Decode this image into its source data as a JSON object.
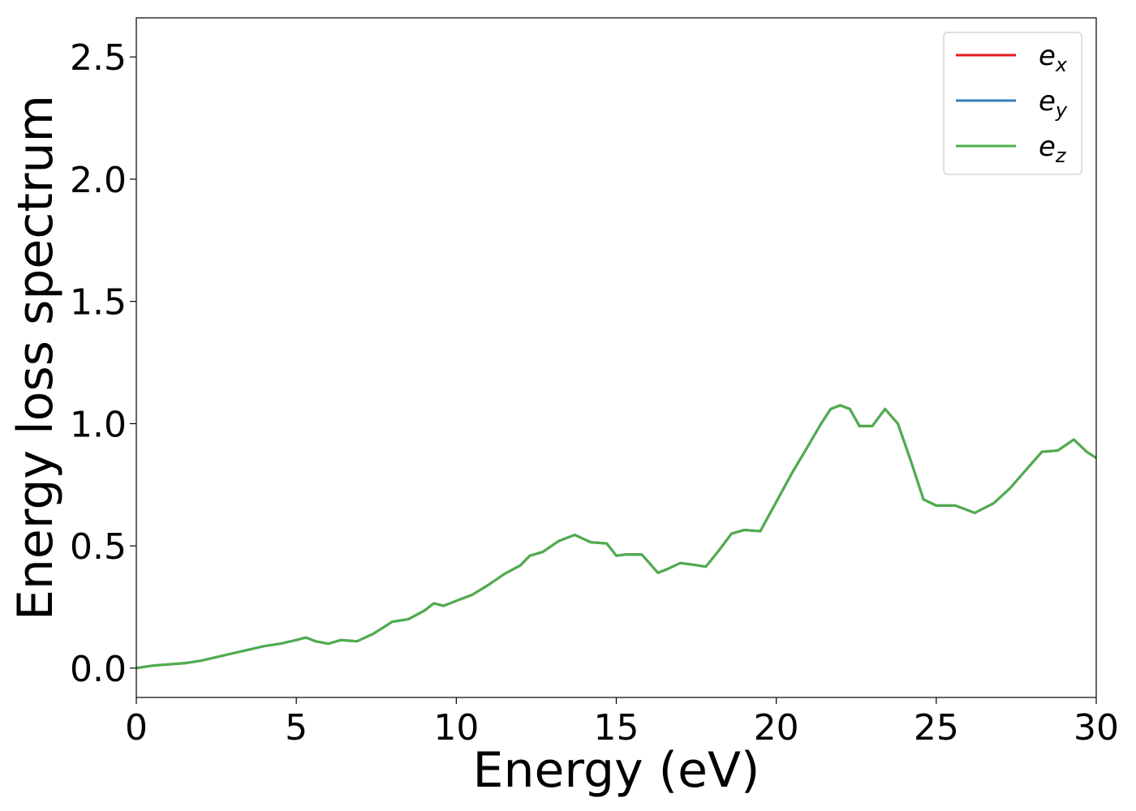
{
  "chart_data": {
    "type": "line",
    "xlabel": "Energy (eV)",
    "ylabel": "Energy loss spectrum",
    "xlim": [
      0,
      30
    ],
    "ylim": [
      -0.12,
      2.66
    ],
    "xticks": [
      0,
      5,
      10,
      15,
      20,
      25,
      30
    ],
    "xtick_labels": [
      "0",
      "5",
      "10",
      "15",
      "20",
      "25",
      "30"
    ],
    "yticks": [
      0.0,
      0.5,
      1.0,
      1.5,
      2.0,
      2.5
    ],
    "ytick_labels": [
      "0.0",
      "0.5",
      "1.0",
      "1.5",
      "2.0",
      "2.5"
    ],
    "grid": false,
    "legend_position": "top-right",
    "x": [
      0,
      0.5,
      1.0,
      1.5,
      2.0,
      2.5,
      3.0,
      3.5,
      4.0,
      4.5,
      5.0,
      5.3,
      5.6,
      6.0,
      6.4,
      6.9,
      7.4,
      8.0,
      8.5,
      9.0,
      9.3,
      9.6,
      10.0,
      10.5,
      11.0,
      11.5,
      12.0,
      12.3,
      12.7,
      13.2,
      13.7,
      14.2,
      14.7,
      15.0,
      15.3,
      15.8,
      16.3,
      16.6,
      17.0,
      17.3,
      17.8,
      18.2,
      18.6,
      19.0,
      19.5,
      20.0,
      20.5,
      21.0,
      21.4,
      21.7,
      22.0,
      22.3,
      22.6,
      23.0,
      23.4,
      23.8,
      24.2,
      24.6,
      25.0,
      25.6,
      26.2,
      26.8,
      27.3,
      27.8,
      28.3,
      28.8,
      29.3,
      29.7,
      30.0
    ],
    "series": [
      {
        "name": "e_x",
        "label_base": "e",
        "label_sub": "x",
        "color": "#e41a1c",
        "values": [
          0.0,
          0.01,
          0.015,
          0.02,
          0.03,
          0.045,
          0.06,
          0.075,
          0.09,
          0.1,
          0.115,
          0.125,
          0.11,
          0.1,
          0.115,
          0.11,
          0.14,
          0.19,
          0.2,
          0.235,
          0.265,
          0.255,
          0.275,
          0.3,
          0.34,
          0.385,
          0.42,
          0.46,
          0.475,
          0.52,
          0.545,
          0.515,
          0.51,
          0.46,
          0.465,
          0.465,
          0.39,
          0.405,
          0.43,
          0.425,
          0.415,
          0.48,
          0.55,
          0.565,
          0.56,
          0.68,
          0.8,
          0.91,
          1.0,
          1.06,
          1.075,
          1.06,
          0.99,
          0.99,
          1.06,
          1.0,
          0.85,
          0.69,
          0.665,
          0.665,
          0.635,
          0.675,
          0.735,
          0.81,
          0.885,
          0.89,
          0.935,
          0.885,
          0.86
        ]
      },
      {
        "name": "e_y",
        "label_base": "e",
        "label_sub": "y",
        "color": "#377eb8",
        "values": [
          0.0,
          0.01,
          0.015,
          0.02,
          0.03,
          0.045,
          0.06,
          0.075,
          0.09,
          0.1,
          0.115,
          0.125,
          0.11,
          0.1,
          0.115,
          0.11,
          0.14,
          0.19,
          0.2,
          0.235,
          0.265,
          0.255,
          0.275,
          0.3,
          0.34,
          0.385,
          0.42,
          0.46,
          0.475,
          0.52,
          0.545,
          0.515,
          0.51,
          0.46,
          0.465,
          0.465,
          0.39,
          0.405,
          0.43,
          0.425,
          0.415,
          0.48,
          0.55,
          0.565,
          0.56,
          0.68,
          0.8,
          0.91,
          1.0,
          1.06,
          1.075,
          1.06,
          0.99,
          0.99,
          1.06,
          1.0,
          0.85,
          0.69,
          0.665,
          0.665,
          0.635,
          0.675,
          0.735,
          0.81,
          0.885,
          0.89,
          0.935,
          0.885,
          0.86
        ]
      },
      {
        "name": "e_z",
        "label_base": "e",
        "label_sub": "z",
        "color": "#4daf4a",
        "values": [
          0.0,
          0.01,
          0.015,
          0.02,
          0.03,
          0.045,
          0.06,
          0.075,
          0.09,
          0.1,
          0.115,
          0.125,
          0.11,
          0.1,
          0.115,
          0.11,
          0.14,
          0.19,
          0.2,
          0.235,
          0.265,
          0.255,
          0.275,
          0.3,
          0.34,
          0.385,
          0.42,
          0.46,
          0.475,
          0.52,
          0.545,
          0.515,
          0.51,
          0.46,
          0.465,
          0.465,
          0.39,
          0.405,
          0.43,
          0.425,
          0.415,
          0.48,
          0.55,
          0.565,
          0.56,
          0.68,
          0.8,
          0.91,
          1.0,
          1.06,
          1.075,
          1.06,
          0.99,
          0.99,
          1.06,
          1.0,
          0.85,
          0.69,
          0.665,
          0.665,
          0.635,
          0.675,
          0.735,
          0.81,
          0.885,
          0.89,
          0.935,
          0.885,
          0.86
        ]
      }
    ]
  }
}
